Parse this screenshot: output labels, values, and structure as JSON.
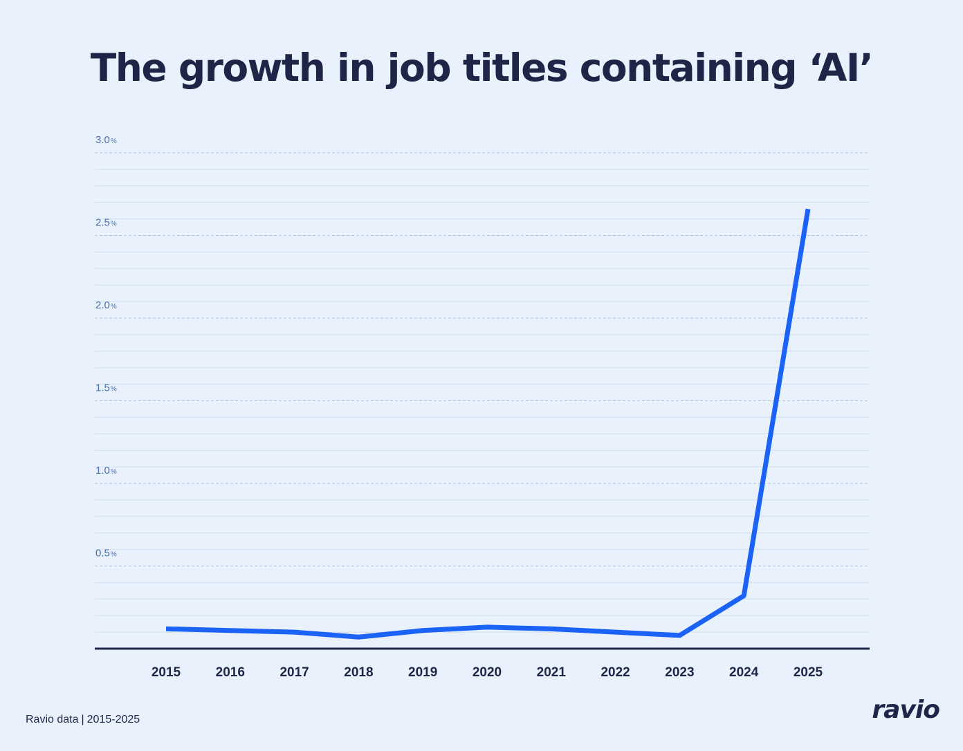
{
  "title": "The growth in job titles containing ‘AI’",
  "source": {
    "label": "Ravio data",
    "separator": "|",
    "range": "2015-2025"
  },
  "logo": "ravio",
  "colors": {
    "background": "#e9f1fd",
    "line": "#1b62f7",
    "text": "#1e2648",
    "axis_label": "#4a6fa5",
    "grid": "#aec3d8"
  },
  "chart_data": {
    "type": "line",
    "title": "The growth in job titles containing ‘AI’",
    "xlabel": "",
    "ylabel": "",
    "categories": [
      "2015",
      "2016",
      "2017",
      "2018",
      "2019",
      "2020",
      "2021",
      "2022",
      "2023",
      "2024",
      "2025"
    ],
    "series": [
      {
        "values": [
          0.12,
          0.11,
          0.1,
          0.07,
          0.11,
          0.13,
          0.12,
          0.1,
          0.08,
          0.32,
          2.66
        ]
      }
    ],
    "ylim": [
      0,
      3.0
    ],
    "yticks": [
      {
        "value": 0.5,
        "label": "0.5",
        "unit": "%"
      },
      {
        "value": 1.0,
        "label": "1.0",
        "unit": "%"
      },
      {
        "value": 1.5,
        "label": "1.5",
        "unit": "%"
      },
      {
        "value": 2.0,
        "label": "2.0",
        "unit": "%"
      },
      {
        "value": 2.5,
        "label": "2.5",
        "unit": "%"
      },
      {
        "value": 3.0,
        "label": "3.0",
        "unit": "%"
      }
    ],
    "grid": true
  }
}
